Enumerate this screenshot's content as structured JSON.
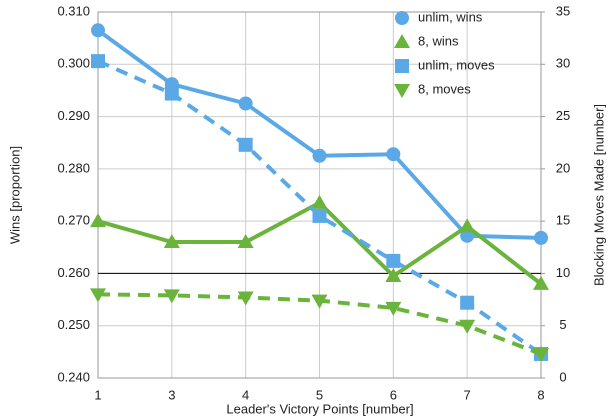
{
  "chart_data": {
    "type": "line",
    "x_label": "Leader's Victory Points [number]",
    "y_label": "Wins [proportion]",
    "y2_label": "Blocking Moves Made [number]",
    "categories": [
      "1",
      "3",
      "4",
      "5",
      "6",
      "7",
      "8"
    ],
    "ylim": [
      0.24,
      0.31
    ],
    "yticks": [
      {
        "value": 0.24,
        "label": "0.240"
      },
      {
        "value": 0.25,
        "label": "0.250"
      },
      {
        "value": 0.26,
        "label": "0.260"
      },
      {
        "value": 0.27,
        "label": "0.270"
      },
      {
        "value": 0.28,
        "label": "0.280"
      },
      {
        "value": 0.29,
        "label": "0.290"
      },
      {
        "value": 0.3,
        "label": "0.300"
      },
      {
        "value": 0.31,
        "label": "0.310"
      }
    ],
    "y2lim": [
      0,
      35
    ],
    "y2ticks": [
      0,
      5,
      10,
      15,
      20,
      25,
      30,
      35
    ],
    "grid": true,
    "reference_line": 0.26,
    "legend": "upper right",
    "series": [
      {
        "name": "unlim, wins",
        "color": "#5aa9e6",
        "marker": "circle",
        "dashed": false,
        "values": [
          0.3065,
          0.2962,
          0.2925,
          0.2825,
          0.2828,
          0.2672,
          0.2668
        ]
      },
      {
        "name": "8, wins",
        "color": "#6ab43b",
        "marker": "triangle-up",
        "dashed": false,
        "values": [
          0.27,
          0.266,
          0.266,
          0.2735,
          0.2595,
          0.269,
          0.258
        ]
      },
      {
        "name": "unlim, moves",
        "color": "#5aa9e6",
        "marker": "square",
        "dashed": true,
        "axis": "y2",
        "values": [
          30.3,
          27.2,
          22.3,
          15.5,
          11.2,
          7.2,
          2.3
        ]
      },
      {
        "name": "8, moves",
        "color": "#6ab43b",
        "marker": "triangle-down",
        "dashed": true,
        "axis": "y2",
        "values": [
          8.0,
          7.9,
          7.7,
          7.4,
          6.7,
          5.0,
          2.3
        ]
      }
    ]
  }
}
